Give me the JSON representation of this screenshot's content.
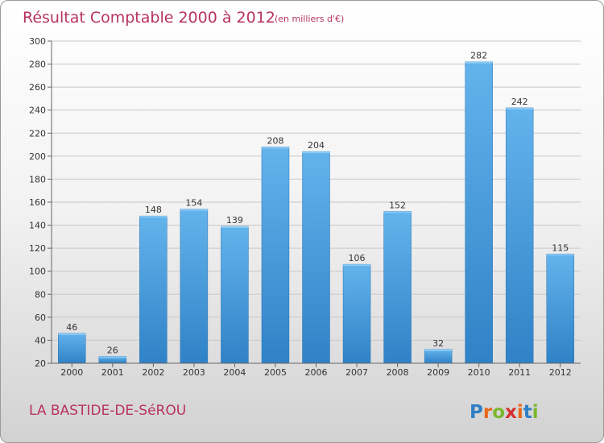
{
  "header": {
    "title": "Résultat Comptable 2000 à 2012",
    "subtitle": "(en milliers d'€)"
  },
  "footer": {
    "commune": "LA BASTIDE-DE-SéROU",
    "logo": [
      "P",
      "r",
      "o",
      "x",
      "i",
      "t",
      "i"
    ],
    "logo_colors": [
      "#2e7fc4",
      "#e8671c",
      "#7ab82e",
      "#d62f2f",
      "#e8671c",
      "#2e7fc4",
      "#7ab82e"
    ]
  },
  "colors": {
    "bar_top": "#63b3ec",
    "bar_bottom": "#2f82c6",
    "grid": "#c8c8c8",
    "title": "#b8335e"
  },
  "chart_data": {
    "type": "bar",
    "title": "Résultat Comptable 2000 à 2012",
    "xlabel": "",
    "ylabel": "",
    "categories": [
      "2000",
      "2001",
      "2002",
      "2003",
      "2004",
      "2005",
      "2006",
      "2007",
      "2008",
      "2009",
      "2010",
      "2011",
      "2012"
    ],
    "values": [
      46,
      26,
      148,
      154,
      139,
      208,
      204,
      106,
      152,
      32,
      282,
      242,
      115
    ],
    "ylim": [
      20,
      300
    ],
    "yticks": [
      20,
      40,
      60,
      80,
      100,
      120,
      140,
      160,
      180,
      200,
      220,
      240,
      260,
      280,
      300
    ],
    "grid": true,
    "legend": "none"
  }
}
